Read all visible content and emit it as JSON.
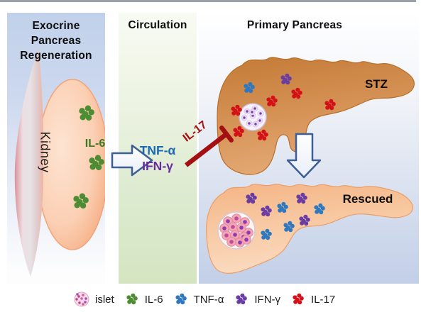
{
  "figure": {
    "panels": {
      "exocrine": {
        "title_line1": "Exocrine Pancreas",
        "title_line2": "Regeneration",
        "organ": "Kidney",
        "cytokine": "IL-6"
      },
      "circulation": {
        "title": "Circulation",
        "cytokine1": "TNF-α",
        "cytokine2": "IFN-γ",
        "inhibitor": "IL-17"
      },
      "primary": {
        "title": "Primary Pancreas",
        "state_top": "STZ",
        "state_bottom": "Rescued"
      }
    },
    "text_colors": {
      "il6": "#3c7a22",
      "tnfa": "#1a67b4",
      "ifng": "#6a2d9e",
      "il17": "#a5100f"
    },
    "legend": [
      {
        "id": "islet",
        "label": "islet",
        "color": "#e78ab8"
      },
      {
        "id": "il6",
        "label": "IL-6",
        "color": "#4e8c33"
      },
      {
        "id": "tnfa",
        "label": "TNF-α",
        "color": "#2e78c0"
      },
      {
        "id": "ifng",
        "label": "IFN-γ",
        "color": "#6a3da2"
      },
      {
        "id": "il17",
        "label": "IL-17",
        "color": "#d31116"
      }
    ],
    "molecule_clusters": [
      {
        "name": "il6-kidney",
        "color": "#4e8c33",
        "r": 4.2,
        "points": [
          [
            122,
            160
          ],
          [
            136,
            230
          ],
          [
            114,
            284
          ]
        ]
      },
      {
        "name": "il17-stz",
        "color": "#d31116",
        "r": 3,
        "points": [
          [
            418,
            132
          ],
          [
            383,
            143
          ],
          [
            465,
            148
          ],
          [
            333,
            156
          ],
          [
            336,
            186
          ],
          [
            370,
            191
          ]
        ]
      },
      {
        "name": "tnfa-stz",
        "color": "#2e78c0",
        "r": 3,
        "points": [
          [
            351,
            124
          ]
        ]
      },
      {
        "name": "ifng-stz",
        "color": "#6a3da2",
        "r": 3,
        "points": [
          [
            403,
            112
          ]
        ]
      },
      {
        "name": "ifng-rescued",
        "color": "#6a3da2",
        "r": 3,
        "points": [
          [
            354,
            280
          ],
          [
            375,
            298
          ],
          [
            425,
            280
          ],
          [
            429,
            311
          ]
        ]
      },
      {
        "name": "tnfa-rescued",
        "color": "#2e78c0",
        "r": 3,
        "points": [
          [
            398,
            293
          ],
          [
            450,
            295
          ],
          [
            407,
            320
          ],
          [
            375,
            331
          ]
        ]
      }
    ]
  }
}
